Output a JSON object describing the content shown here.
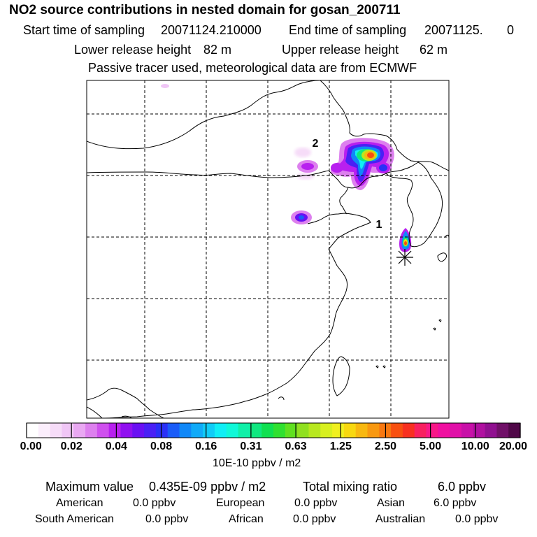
{
  "header": {
    "title": "NO2 source contributions in nested domain for gosan_200711",
    "start_label": "Start time of sampling",
    "start_value": "20071124.210000",
    "end_label": "End time of sampling",
    "end_value": "20071125.",
    "end_value_extra": "0",
    "lower_label": "Lower release height",
    "lower_value": "82 m",
    "upper_label": "Upper release height",
    "upper_value": "62 m",
    "note": "Passive tracer used, meteorological data are from ECMWF"
  },
  "map": {
    "markers": [
      {
        "label": "2",
        "kind": "source-cluster"
      },
      {
        "label": "1",
        "kind": "source-cluster"
      }
    ],
    "receptor": "asterisk-marker"
  },
  "colorbar": {
    "tick_labels": [
      "0.00",
      "0.02",
      "0.04",
      "0.08",
      "0.16",
      "0.31",
      "0.63",
      "1.25",
      "2.50",
      "5.00",
      "10.00",
      "20.00"
    ],
    "colors": [
      "#ffffff",
      "#fbeefc",
      "#f6dcf8",
      "#f0c6f6",
      "#e9a8f2",
      "#dd80ee",
      "#cf50ee",
      "#b820ef",
      "#9010f0",
      "#6a10f3",
      "#4a20f5",
      "#2a30f7",
      "#1a5cf8",
      "#1088f8",
      "#10aaf8",
      "#10ccf7",
      "#10eef5",
      "#10f8d8",
      "#10f0a8",
      "#10e880",
      "#10e050",
      "#30e030",
      "#60e020",
      "#90e020",
      "#b8e820",
      "#d8f020",
      "#f0f020",
      "#f8d810",
      "#f8b810",
      "#f89810",
      "#f87810",
      "#f85010",
      "#f83020",
      "#f82060",
      "#f81888",
      "#f010a0",
      "#e010a8",
      "#c810a8",
      "#b010a0",
      "#901090",
      "#701068",
      "#500848"
    ],
    "unit": "10E-10 ppbv / m2"
  },
  "stats": {
    "max_label": "Maximum value",
    "max_value": "0.435E-09 ppbv / m2",
    "total_label": "Total mixing ratio",
    "total_value": "6.0 ppbv",
    "regions": [
      {
        "name": "American",
        "value": "0.0 ppbv"
      },
      {
        "name": "European",
        "value": "0.0 ppbv"
      },
      {
        "name": "Asian",
        "value": "6.0 ppbv"
      },
      {
        "name": "South American",
        "value": "0.0 ppbv"
      },
      {
        "name": "African",
        "value": "0.0 ppbv"
      },
      {
        "name": "Australian",
        "value": "0.0 ppbv"
      }
    ]
  }
}
